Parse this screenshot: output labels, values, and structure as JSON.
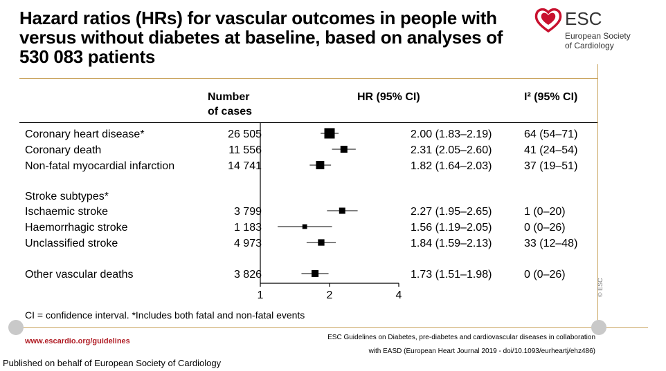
{
  "title": "Hazard ratios (HRs) for vascular outcomes in people with versus without diabetes at baseline, based on analyses of 530 083 patients",
  "logo": {
    "name": "ESC",
    "subtitle_line1": "European Society",
    "subtitle_line2": "of Cardiology",
    "color": "#c8102e"
  },
  "headers": {
    "cases_line1": "Number",
    "cases_line2": "of cases",
    "hr": "HR (95% CI)",
    "i2": "I² (95% CI)"
  },
  "footnote": "CI = confidence interval. *Includes both fatal and non-fatal events",
  "url": "www.escardio.org/guidelines",
  "citation_line1": "ESC Guidelines on Diabetes, pre-diabetes and cardiovascular diseases in collaboration",
  "citation_line2": "with EASD (European Heart Journal 2019 - doi/10.1093/eurheartj/ehz486)",
  "published": "Published on behalf of European Society of Cardiology",
  "copyright": "© ESC",
  "chart_data": {
    "type": "forest",
    "x_scale": "log",
    "xlim": [
      1,
      4
    ],
    "x_ticks": [
      "1",
      "2",
      "4"
    ],
    "reference_line": 1,
    "group_labels": [
      "Stroke subtypes*"
    ],
    "rows": [
      {
        "label": "Coronary heart disease*",
        "cases": "26 505",
        "hr": 2.0,
        "lo": 1.83,
        "hi": 2.19,
        "hr_text": "2.00 (1.83–2.19)",
        "i2_text": "64 (54–71)",
        "weight": 1.0
      },
      {
        "label": "Coronary death",
        "cases": "11 556",
        "hr": 2.31,
        "lo": 2.05,
        "hi": 2.6,
        "hr_text": "2.31 (2.05–2.60)",
        "i2_text": "41 (24–54)",
        "weight": 0.55
      },
      {
        "label": "Non-fatal myocardial infarction",
        "cases": "14 741",
        "hr": 1.82,
        "lo": 1.64,
        "hi": 2.03,
        "hr_text": "1.82 (1.64–2.03)",
        "i2_text": "37 (19–51)",
        "weight": 0.72
      },
      {
        "label": "Ischaemic stroke",
        "cases": "3 799",
        "hr": 2.27,
        "lo": 1.95,
        "hi": 2.65,
        "hr_text": "2.27 (1.95–2.65)",
        "i2_text": "1 (0–20)",
        "weight": 0.45
      },
      {
        "label": "Haemorrhagic stroke",
        "cases": "1 183",
        "hr": 1.56,
        "lo": 1.19,
        "hi": 2.05,
        "hr_text": "1.56 (1.19–2.05)",
        "i2_text": "0 (0–26)",
        "weight": 0.25
      },
      {
        "label": "Unclassified stroke",
        "cases": "4 973",
        "hr": 1.84,
        "lo": 1.59,
        "hi": 2.13,
        "hr_text": "1.84 (1.59–2.13)",
        "i2_text": "33 (12–48)",
        "weight": 0.48
      },
      {
        "label": "Other vascular deaths",
        "cases": "3 826",
        "hr": 1.73,
        "lo": 1.51,
        "hi": 1.98,
        "hr_text": "1.73 (1.51–1.98)",
        "i2_text": "0 (0–26)",
        "weight": 0.55
      }
    ]
  }
}
